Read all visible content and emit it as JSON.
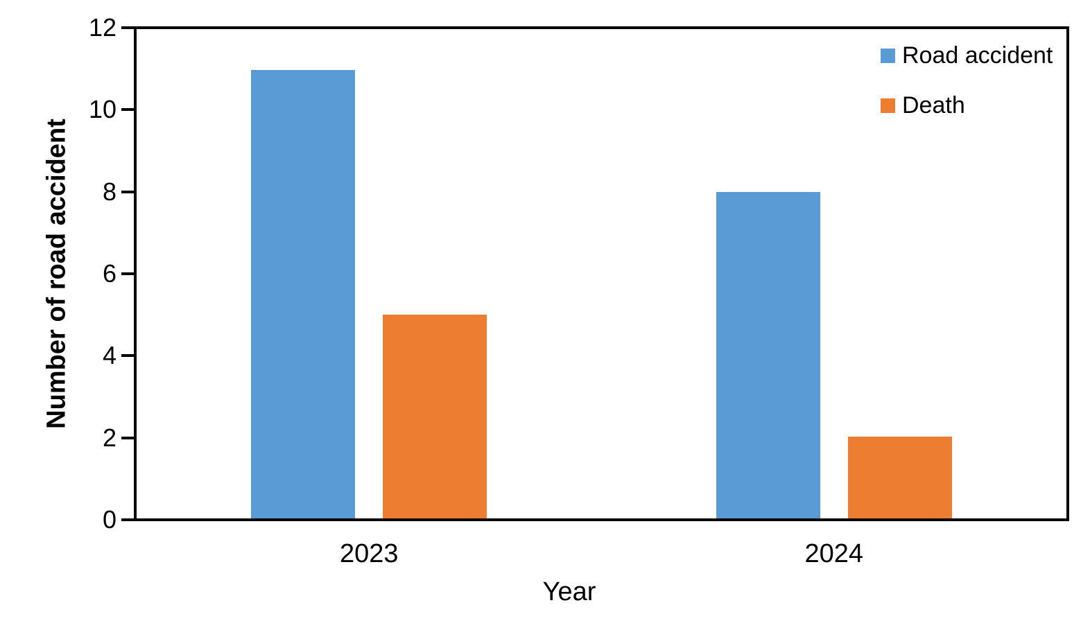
{
  "chart_data": {
    "type": "bar",
    "categories": [
      "2023",
      "2024"
    ],
    "series": [
      {
        "name": "Road accident",
        "color": "#5B9BD5",
        "values": [
          11,
          8
        ]
      },
      {
        "name": "Death",
        "color": "#ED7D31",
        "values": [
          5,
          2
        ]
      }
    ],
    "title": "",
    "xlabel": "Year",
    "ylabel": "Number of road accident",
    "ylim": [
      0,
      12
    ],
    "yticks": [
      0,
      2,
      4,
      6,
      8,
      10,
      12
    ],
    "grid": false,
    "legend_position": "top-right-inside",
    "axis_color": "#000000",
    "text_color": "#000000",
    "plot_background": "#ffffff"
  }
}
